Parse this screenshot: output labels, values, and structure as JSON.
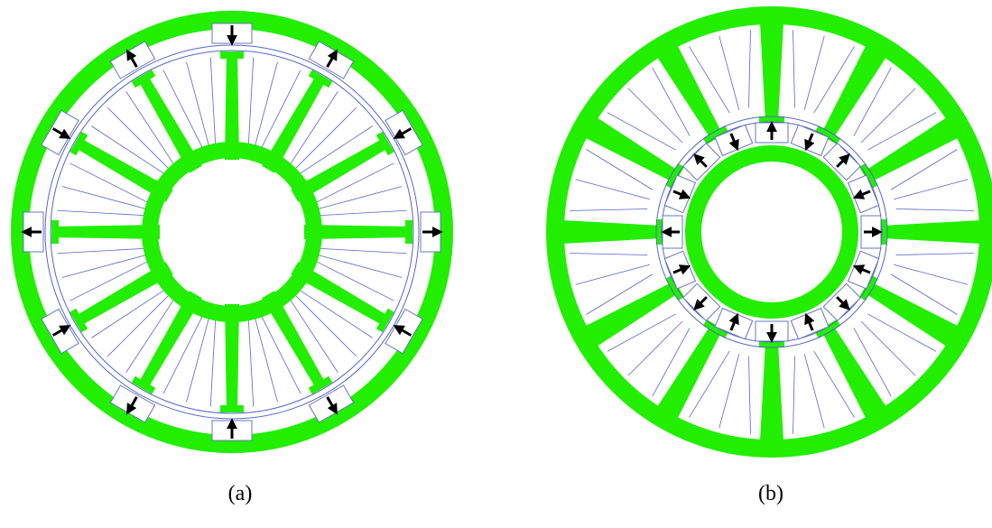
{
  "captions": {
    "a": "(a)",
    "b": "(b)"
  },
  "colors": {
    "iron": "#22ee00",
    "coil_line": "#5566cc",
    "magnet_outline": "#6677bb",
    "arrow": "#000000",
    "background": "#ffffff"
  },
  "machines": {
    "a": {
      "description_type": "outer-magnet machine",
      "stator_teeth": 12,
      "magnets": 12,
      "magnet_arrows": [
        "down",
        "up",
        "down",
        "right",
        "left",
        "left",
        "up",
        "down",
        "left",
        "right",
        "right",
        "up"
      ]
    },
    "b": {
      "description_type": "inner-magnet machine",
      "stator_teeth": 12,
      "magnets": 16
    }
  }
}
